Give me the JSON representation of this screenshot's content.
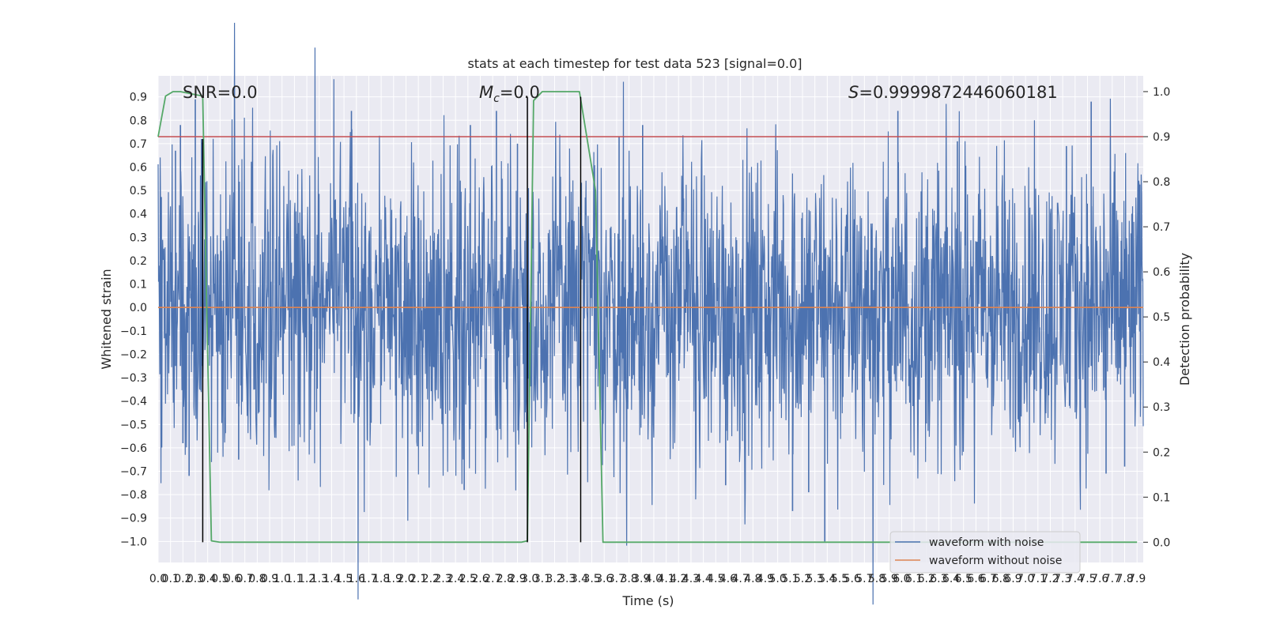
{
  "chart_data": {
    "type": "line",
    "title": "stats at each timestep for test data 523 [signal=0.0]",
    "xlabel": "Time (s)",
    "ylabel": "Whitened strain",
    "y2label": "Detection probability",
    "xlim": [
      0.0,
      7.95
    ],
    "ylim": [
      -1.09,
      0.99
    ],
    "y2lim": [
      -0.045,
      1.035
    ],
    "grid": true,
    "legend_position": "lower-right",
    "x_ticks": [
      0.0,
      0.1,
      0.2,
      0.3,
      0.4,
      0.5,
      0.6,
      0.7,
      0.8,
      0.9,
      1.0,
      1.1,
      1.2,
      1.3,
      1.4,
      1.5,
      1.6,
      1.7,
      1.8,
      1.9,
      2.0,
      2.1,
      2.2,
      2.3,
      2.4,
      2.5,
      2.6,
      2.7,
      2.8,
      2.9,
      3.0,
      3.1,
      3.2,
      3.3,
      3.4,
      3.5,
      3.6,
      3.7,
      3.8,
      3.9,
      4.0,
      4.1,
      4.2,
      4.3,
      4.4,
      4.5,
      4.6,
      4.7,
      4.8,
      4.9,
      5.0,
      5.1,
      5.2,
      5.3,
      5.4,
      5.5,
      5.6,
      5.7,
      5.8,
      5.9,
      6.0,
      6.1,
      6.2,
      6.3,
      6.4,
      6.5,
      6.6,
      6.7,
      6.8,
      6.9,
      7.0,
      7.1,
      7.2,
      7.3,
      7.4,
      7.5,
      7.6,
      7.7,
      7.8,
      7.9
    ],
    "y_ticks": [
      -1.0,
      -0.9,
      -0.8,
      -0.7,
      -0.6,
      -0.5,
      -0.4,
      -0.3,
      -0.2,
      -0.1,
      0.0,
      0.1,
      0.2,
      0.3,
      0.4,
      0.5,
      0.6,
      0.7,
      0.8,
      0.9
    ],
    "y2_ticks": [
      0.0,
      0.1,
      0.2,
      0.3,
      0.4,
      0.5,
      0.6,
      0.7,
      0.8,
      0.9,
      1.0
    ],
    "annotations": {
      "snr": "SNR=0.0",
      "mc_symbol": "M",
      "mc_sub": "c",
      "mc_value": "=0.0",
      "s_symbol": "S",
      "s_value": "=0.9999872446060181"
    },
    "series": [
      {
        "name": "waveform with noise",
        "color": "#4c72b0",
        "axis": "left",
        "kind": "noise",
        "envelope_typical": 0.35,
        "spikes": [
          {
            "x": 0.14,
            "y": 0.67
          },
          {
            "x": 0.18,
            "y": 0.78
          },
          {
            "x": 0.2,
            "y": -0.58
          },
          {
            "x": 0.25,
            "y": -0.72
          },
          {
            "x": 0.3,
            "y": 0.89
          },
          {
            "x": 0.35,
            "y": 0.72
          },
          {
            "x": 0.65,
            "y": -0.65
          },
          {
            "x": 1.56,
            "y": 0.84
          },
          {
            "x": 2.47,
            "y": -0.78
          },
          {
            "x": 2.52,
            "y": 0.78
          },
          {
            "x": 2.73,
            "y": 0.84
          },
          {
            "x": 2.9,
            "y": 0.7
          },
          {
            "x": 3.72,
            "y": 0.73
          },
          {
            "x": 3.91,
            "y": 0.78
          },
          {
            "x": 4.58,
            "y": -0.76
          },
          {
            "x": 5.12,
            "y": -0.87
          },
          {
            "x": 5.25,
            "y": -0.79
          },
          {
            "x": 5.38,
            "y": -1.0
          },
          {
            "x": 5.97,
            "y": 0.84
          },
          {
            "x": 6.45,
            "y": 0.71
          },
          {
            "x": 7.33,
            "y": 0.69
          },
          {
            "x": 7.53,
            "y": 0.88
          },
          {
            "x": 7.65,
            "y": -0.71
          },
          {
            "x": 7.8,
            "y": -0.68
          }
        ]
      },
      {
        "name": "waveform without noise",
        "color": "#dd8452",
        "axis": "left",
        "x": [
          0.0,
          7.95
        ],
        "y": [
          0.0,
          0.0
        ]
      },
      {
        "name": "detection probability",
        "color": "#55a868",
        "axis": "right",
        "x": [
          0.0,
          0.06,
          0.12,
          0.18,
          0.36,
          0.39,
          0.43,
          0.5,
          2.93,
          2.98,
          3.03,
          3.1,
          3.4,
          3.53,
          3.59,
          7.9
        ],
        "y": [
          0.9,
          0.99,
          1.0,
          1.0,
          0.99,
          0.55,
          0.003,
          0.0,
          0.0,
          0.003,
          0.98,
          1.0,
          1.0,
          0.78,
          0.0,
          0.0
        ]
      }
    ],
    "threshold": {
      "axis": "right",
      "value": 0.9,
      "color": "#c44e52"
    },
    "markers": {
      "color": "#000000",
      "x": [
        0.36,
        2.98,
        3.41
      ],
      "y_top": [
        0.72,
        0.9,
        0.9
      ]
    }
  }
}
